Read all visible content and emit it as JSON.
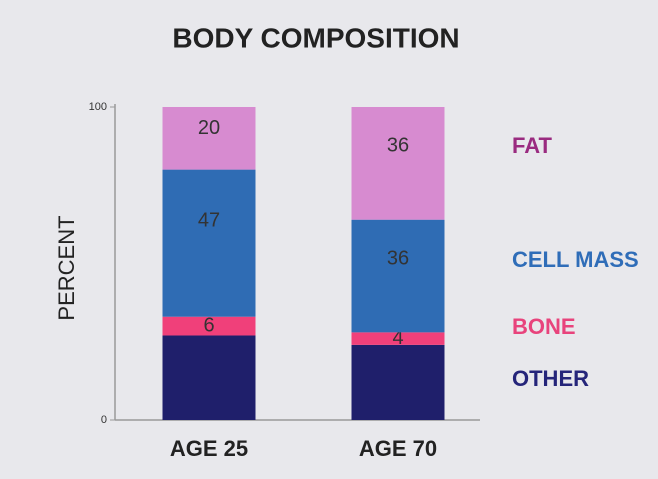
{
  "chart_data": {
    "type": "stacked_bar",
    "title": "BODY COMPOSITION",
    "ylabel": "PERCENT",
    "categories": [
      "AGE 25",
      "AGE 70"
    ],
    "series": [
      {
        "name": "OTHER",
        "color": "#1f1f6b",
        "label_color": "#25257a",
        "data_labels": false,
        "values": [
          27,
          24
        ]
      },
      {
        "name": "BONE",
        "color": "#f0407a",
        "label_color": "#e8437c",
        "data_labels": true,
        "values": [
          6,
          4
        ]
      },
      {
        "name": "CELL MASS",
        "color": "#2f6cb4",
        "label_color": "#2f6db8",
        "data_labels": true,
        "values": [
          47,
          36
        ]
      },
      {
        "name": "FAT",
        "color": "#d78bd0",
        "label_color": "#9a2b80",
        "data_labels": true,
        "values": [
          20,
          36
        ]
      }
    ],
    "ylim": [
      0,
      100
    ],
    "yticks": [
      0,
      100
    ]
  }
}
